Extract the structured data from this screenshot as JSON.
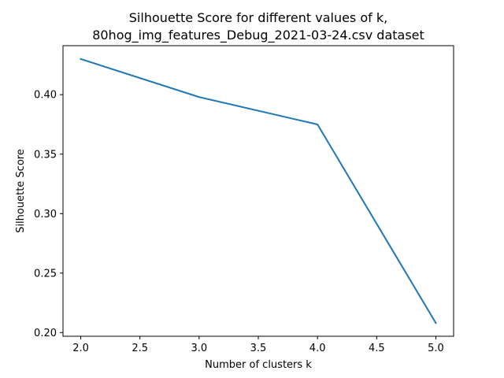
{
  "chart_data": {
    "type": "line",
    "title": [
      "Silhouette Score for different values of k,",
      "80hog_img_features_Debug_2021-03-24.csv dataset"
    ],
    "xlabel": "Number of clusters k",
    "ylabel": "Silhouette Score",
    "x": [
      2,
      3,
      4,
      5
    ],
    "series": [
      {
        "values": [
          0.43,
          0.398,
          0.375,
          0.208
        ],
        "color": "#1f77b4"
      }
    ],
    "xlim": [
      1.85,
      5.15
    ],
    "ylim": [
      0.1969,
      0.4412
    ],
    "xticks": [
      2.0,
      2.5,
      3.0,
      3.5,
      4.0,
      4.5,
      5.0
    ],
    "xtick_labels": [
      "2.0",
      "2.5",
      "3.0",
      "3.5",
      "4.0",
      "4.5",
      "5.0"
    ],
    "yticks": [
      0.2,
      0.25,
      0.3,
      0.35,
      0.4
    ],
    "ytick_labels": [
      "0.20",
      "0.25",
      "0.30",
      "0.35",
      "0.40"
    ],
    "grid": false,
    "legend": "none"
  }
}
